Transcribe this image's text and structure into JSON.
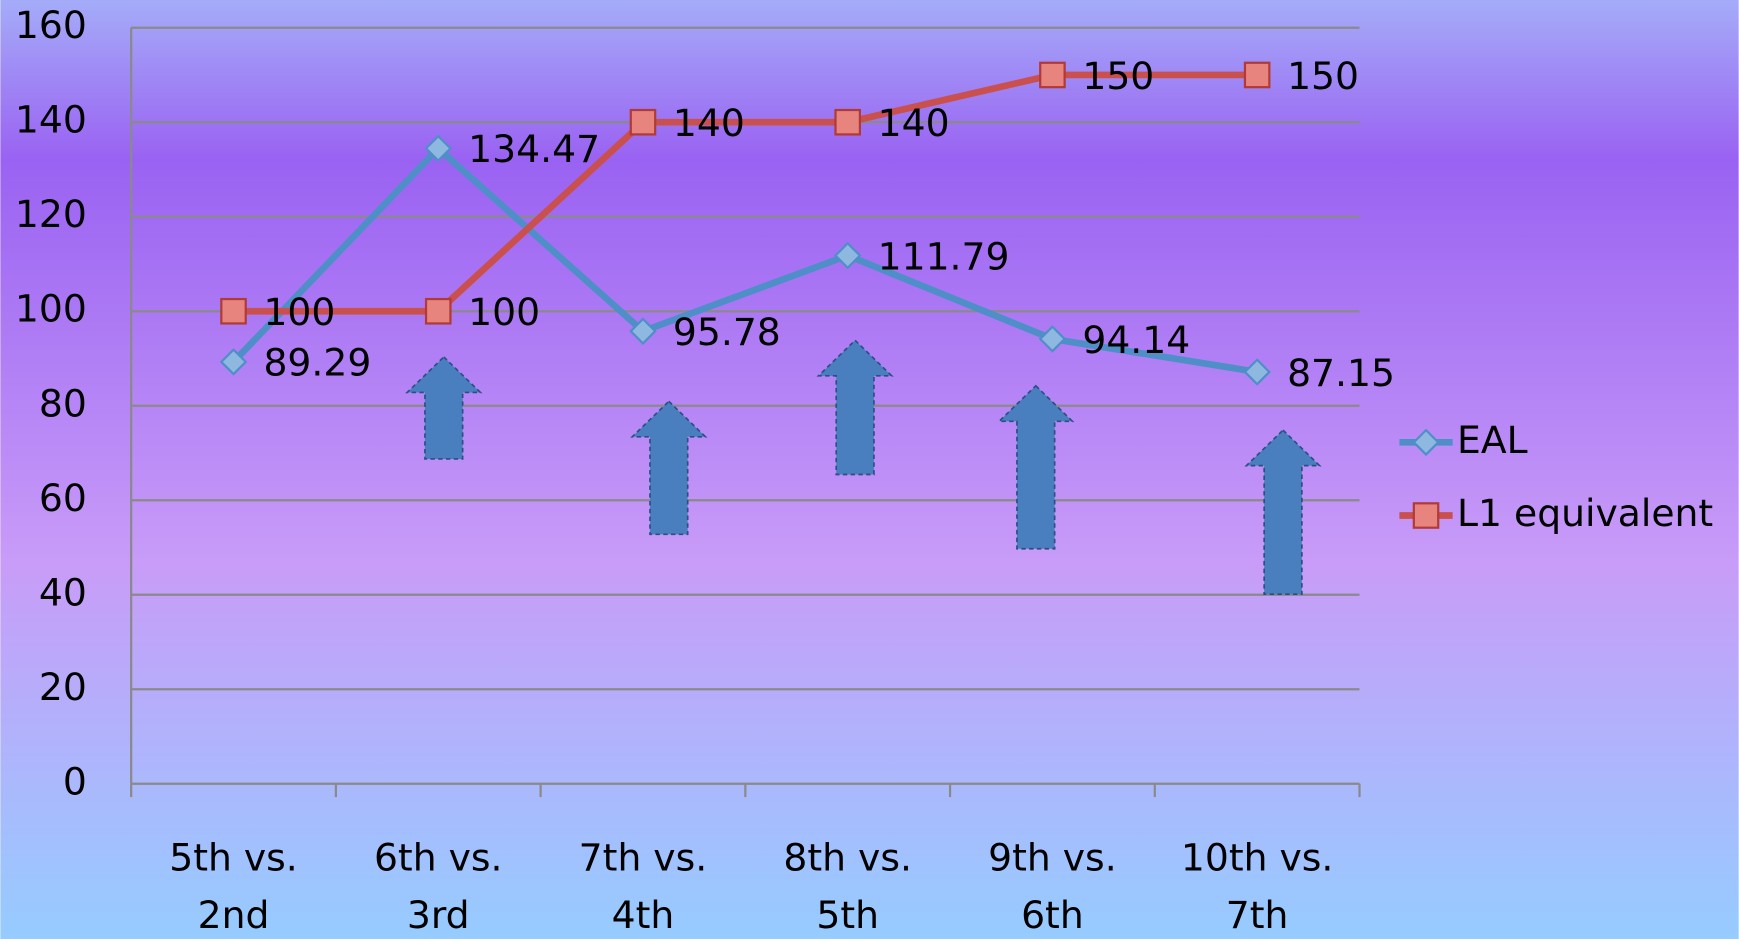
{
  "chart_data": {
    "type": "line",
    "categories": [
      "5th vs. 2nd",
      "6th vs. 3rd",
      "7th vs. 4th",
      "8th vs. 5th",
      "9th vs. 6th",
      "10th vs. 7th"
    ],
    "series": [
      {
        "name": "EAL",
        "color": "#4f8fc8",
        "values": [
          89.29,
          134.47,
          95.78,
          111.79,
          94.14,
          87.15
        ]
      },
      {
        "name": "L1 equivalent",
        "color": "#c9504d",
        "values": [
          100,
          100,
          140,
          140,
          150,
          150
        ]
      }
    ],
    "ylim": [
      0,
      160
    ],
    "yticks": [
      0,
      20,
      40,
      60,
      80,
      100,
      120,
      140,
      160
    ],
    "grid": true,
    "legend": "right"
  }
}
